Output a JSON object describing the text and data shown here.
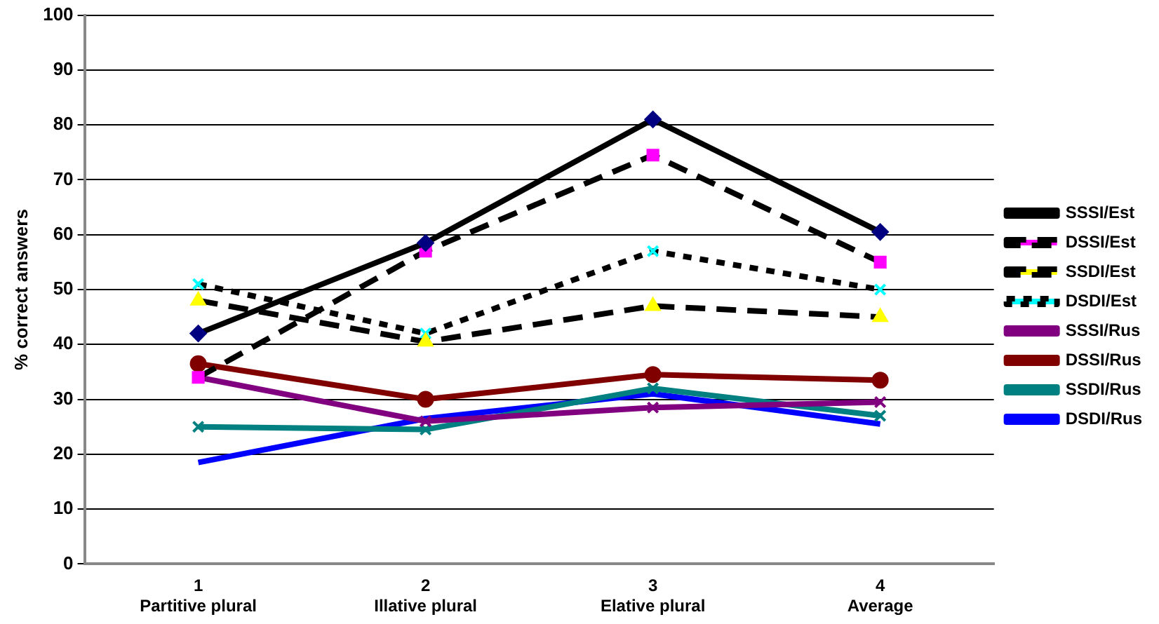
{
  "chart_data": {
    "type": "line",
    "ylabel": "% correct answers",
    "categories": [
      "1\nPartitive plural",
      "2\nIllative plural",
      "3\nElative plural",
      "4\nAverage"
    ],
    "ylim": [
      0,
      100
    ],
    "yticks": [
      0,
      10,
      20,
      30,
      40,
      50,
      60,
      70,
      80,
      90,
      100
    ],
    "grid": "y",
    "legend": "right",
    "series": [
      {
        "name": "SSSI/Est",
        "color": "#000000",
        "colors": [
          "#000080",
          "#000080",
          "#000080",
          "#000080"
        ],
        "marker": "diamond",
        "line_style": "solid",
        "values": [
          42,
          58.5,
          81,
          60.5
        ]
      },
      {
        "name": "DSSI/Est",
        "color": "#000000",
        "colors": [
          "#ff00ff",
          "#ff00ff",
          "#ff00ff",
          "#ff00ff"
        ],
        "marker": "square",
        "line_style": "dashed",
        "values": [
          34,
          57,
          74.5,
          55
        ]
      },
      {
        "name": "SSDI/Est",
        "color": "#000000",
        "colors": [
          "#ffff00",
          "#ffff00",
          "#ffff00",
          "#ffff00"
        ],
        "marker": "triangle",
        "line_style": "dashed",
        "values": [
          48,
          40.5,
          47,
          45
        ]
      },
      {
        "name": "DSDI/Est",
        "color": "#000000",
        "colors": [
          "#00ffff",
          "#00ffff",
          "#00ffff",
          "#00ffff"
        ],
        "marker": "cross",
        "line_style": "dotted",
        "values": [
          51,
          42,
          57,
          50
        ]
      },
      {
        "name": "SSSI/Rus",
        "color": "#800080",
        "marker": "cross",
        "line_style": "solid",
        "values": [
          34,
          26,
          28.5,
          29.5
        ]
      },
      {
        "name": "DSSI/Rus",
        "color": "#800000",
        "marker": "circle",
        "line_style": "solid",
        "values": [
          36.5,
          30,
          34.5,
          33.5
        ]
      },
      {
        "name": "SSDI/Rus",
        "color": "#008080",
        "marker": "cross",
        "line_style": "solid",
        "values": [
          25,
          24.5,
          32,
          27
        ]
      },
      {
        "name": "DSDI/Rus",
        "color": "#0000ff",
        "marker": "none",
        "line_style": "solid",
        "values": [
          18.5,
          26.5,
          31,
          25.5
        ]
      }
    ]
  }
}
